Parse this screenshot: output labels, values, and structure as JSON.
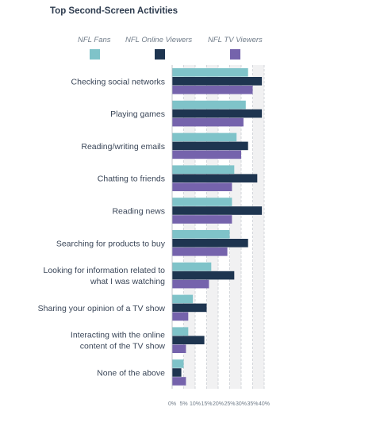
{
  "chart_data": {
    "type": "bar",
    "orientation": "horizontal",
    "title": "Top Second-Screen Activities",
    "categories": [
      [
        "Checking social networks"
      ],
      [
        "Playing games"
      ],
      [
        "Reading/writing emails"
      ],
      [
        "Chatting to friends"
      ],
      [
        "Reading news"
      ],
      [
        "Searching for products to buy"
      ],
      [
        "Looking for information related to",
        "what I was watching"
      ],
      [
        "Sharing your opinion of a TV show"
      ],
      [
        "Interacting with the online",
        "content of the TV show"
      ],
      [
        "None of the above"
      ]
    ],
    "series": [
      {
        "name": "NFL Fans",
        "color": "#7fc3c9",
        "values": [
          33,
          32,
          28,
          27,
          26,
          25,
          17,
          9,
          7,
          5
        ]
      },
      {
        "name": "NFL Online Viewers",
        "color": "#1e3550",
        "values": [
          39,
          39,
          33,
          37,
          39,
          33,
          27,
          15,
          14,
          4
        ]
      },
      {
        "name": "NFL TV Viewers",
        "color": "#7563ac",
        "values": [
          35,
          31,
          30,
          26,
          26,
          24,
          16,
          7,
          6,
          6
        ]
      }
    ],
    "xticks": [
      "0%",
      "5%",
      "10%",
      "15%",
      "20%",
      "25%",
      "30%",
      "35%",
      "40%"
    ],
    "xlim": [
      0,
      40
    ],
    "grid": true,
    "legend_position": "top"
  }
}
